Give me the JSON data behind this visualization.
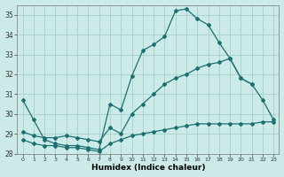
{
  "xlabel": "Humidex (Indice chaleur)",
  "background_color": "#cceae8",
  "grid_color": "#aad4d0",
  "line_color": "#1a7070",
  "xlim": [
    0,
    23
  ],
  "ylim": [
    28,
    35.5
  ],
  "yticks": [
    28,
    29,
    30,
    31,
    32,
    33,
    34,
    35
  ],
  "curve_top_x": [
    0,
    1,
    2,
    3,
    4,
    5,
    6,
    7,
    8,
    9,
    10,
    11,
    12,
    13,
    14,
    15,
    16,
    17,
    18,
    19,
    20,
    21
  ],
  "curve_top_y": [
    30.7,
    29.7,
    28.7,
    28.5,
    28.4,
    28.4,
    28.3,
    28.2,
    30.5,
    30.2,
    31.9,
    33.2,
    33.5,
    33.9,
    35.2,
    35.3,
    34.8,
    34.5,
    33.6,
    32.8,
    31.8,
    31.5
  ],
  "curve_mid_x": [
    0,
    1,
    2,
    3,
    4,
    5,
    6,
    7,
    8,
    9,
    10,
    11,
    12,
    13,
    14,
    15,
    16,
    17,
    18,
    19,
    20,
    21,
    22,
    23
  ],
  "curve_mid_y": [
    29.1,
    28.9,
    28.8,
    28.8,
    28.9,
    28.8,
    28.7,
    28.6,
    29.3,
    29.0,
    30.0,
    30.5,
    31.0,
    31.5,
    31.8,
    32.0,
    32.3,
    32.5,
    32.6,
    32.8,
    31.8,
    31.5,
    30.7,
    29.7
  ],
  "curve_bot_x": [
    0,
    1,
    2,
    3,
    4,
    5,
    6,
    7,
    8,
    9,
    10,
    11,
    12,
    13,
    14,
    15,
    16,
    17,
    18,
    19,
    20,
    21,
    22,
    23
  ],
  "curve_bot_y": [
    28.7,
    28.5,
    28.4,
    28.4,
    28.3,
    28.3,
    28.2,
    28.1,
    28.5,
    28.7,
    28.9,
    29.0,
    29.1,
    29.2,
    29.3,
    29.4,
    29.5,
    29.5,
    29.5,
    29.5,
    29.5,
    29.5,
    29.6,
    29.6
  ]
}
